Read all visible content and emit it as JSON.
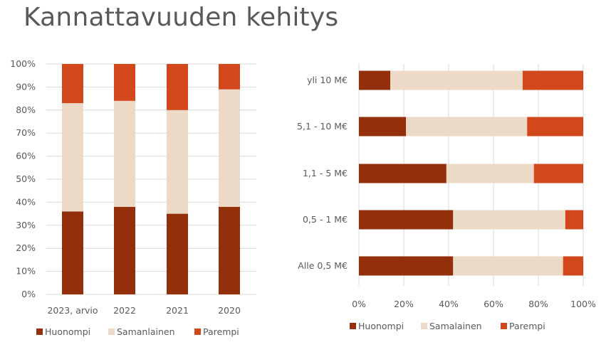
{
  "title": "Kannattavuuden kehitys",
  "colors": {
    "Huonompi": "#93300b",
    "Samanlainen": "#ecd9c6",
    "Parempi": "#d2471c"
  },
  "chart_data": [
    {
      "type": "bar",
      "orientation": "vertical",
      "stacked": true,
      "categories": [
        "2023, arvio",
        "2022",
        "2021",
        "2020"
      ],
      "series": [
        {
          "name": "Huonompi",
          "values": [
            36,
            38,
            35,
            38
          ]
        },
        {
          "name": "Samanlainen",
          "values": [
            47,
            46,
            45,
            51
          ]
        },
        {
          "name": "Parempi",
          "values": [
            17,
            16,
            20,
            11
          ]
        }
      ],
      "ylim": [
        0,
        100
      ],
      "yticks": [
        "0%",
        "10%",
        "20%",
        "30%",
        "40%",
        "50%",
        "60%",
        "70%",
        "80%",
        "90%",
        "100%"
      ],
      "grid": true,
      "legend": "bottom"
    },
    {
      "type": "bar",
      "orientation": "horizontal",
      "stacked": true,
      "categories": [
        "yli 10 M€",
        "5,1 - 10 M€",
        "1,1 - 5 M€",
        "0,5 - 1 M€",
        "Alle 0,5 M€"
      ],
      "series": [
        {
          "name": "Huonompi",
          "values": [
            14,
            21,
            39,
            42,
            42
          ]
        },
        {
          "name": "Samalainen",
          "values": [
            59,
            54,
            39,
            50,
            49
          ]
        },
        {
          "name": "Parempi",
          "values": [
            27,
            25,
            22,
            8,
            9
          ]
        }
      ],
      "xlim": [
        0,
        100
      ],
      "xticks": [
        "0%",
        "20%",
        "40%",
        "60%",
        "80%",
        "100%"
      ],
      "grid": true,
      "legend": "bottom"
    }
  ]
}
